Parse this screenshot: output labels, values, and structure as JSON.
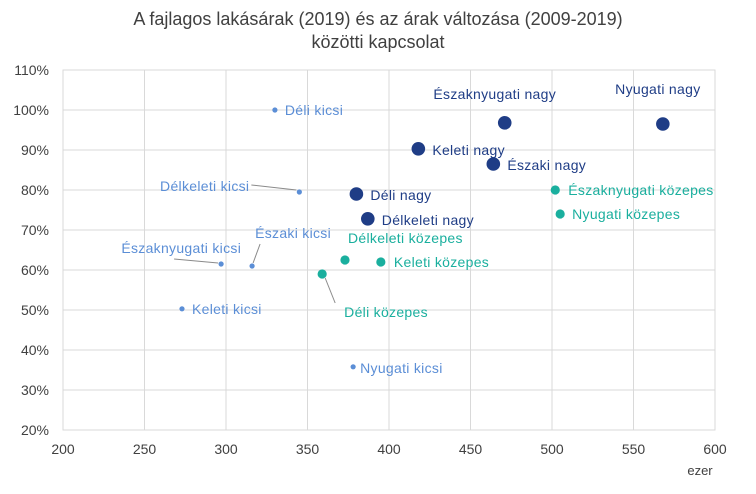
{
  "chart_data": {
    "type": "scatter",
    "title_lines": [
      "A fajlagos lakásárak (2019) és az árak változása (2009-2019)",
      "közötti kapcsolat"
    ],
    "x_unit": "ezer",
    "xlim": [
      200,
      600
    ],
    "ylim": [
      20,
      110
    ],
    "x_ticks": [
      "200",
      "250",
      "300",
      "350",
      "400",
      "450",
      "500",
      "550",
      "600"
    ],
    "y_ticks": [
      "20%",
      "30%",
      "40%",
      "50%",
      "60%",
      "70%",
      "80%",
      "90%",
      "100%",
      "110%"
    ],
    "grid": "horizontal and vertical",
    "legend": "none",
    "colors": {
      "kicsi": "#5b8ed6",
      "kozepes": "#1aaf9e",
      "nagy": "#1f3d86",
      "grid": "#d9d9d9"
    },
    "series": [
      {
        "group": "kicsi",
        "points": [
          {
            "label": "Déli kicsi",
            "x": 330,
            "y": 100
          },
          {
            "label": "Délkeleti kicsi",
            "x": 345,
            "y": 79.5
          },
          {
            "label": "Északi kicsi",
            "x": 316,
            "y": 61
          },
          {
            "label": "Északnyugati kicsi",
            "x": 297,
            "y": 61.5
          },
          {
            "label": "Keleti kicsi",
            "x": 273,
            "y": 50.3
          },
          {
            "label": "Nyugati kicsi",
            "x": 378,
            "y": 35.8
          }
        ]
      },
      {
        "group": "kozepes",
        "points": [
          {
            "label": "Délkeleti közepes",
            "x": 373,
            "y": 62.5
          },
          {
            "label": "Keleti közepes",
            "x": 395,
            "y": 62
          },
          {
            "label": "Déli közepes",
            "x": 359,
            "y": 59
          },
          {
            "label": "Északnyugati közepes",
            "x": 502,
            "y": 80
          },
          {
            "label": "Nyugati közepes",
            "x": 505,
            "y": 74
          }
        ]
      },
      {
        "group": "nagy",
        "points": [
          {
            "label": "Északnyugati nagy",
            "x": 471,
            "y": 96.8
          },
          {
            "label": "Nyugati nagy",
            "x": 568,
            "y": 96.5
          },
          {
            "label": "Keleti nagy",
            "x": 418,
            "y": 90.3
          },
          {
            "label": "Északi nagy",
            "x": 464,
            "y": 86.5
          },
          {
            "label": "Déli nagy",
            "x": 380,
            "y": 79
          },
          {
            "label": "Délkeleti nagy",
            "x": 387,
            "y": 72.8
          }
        ]
      }
    ]
  }
}
